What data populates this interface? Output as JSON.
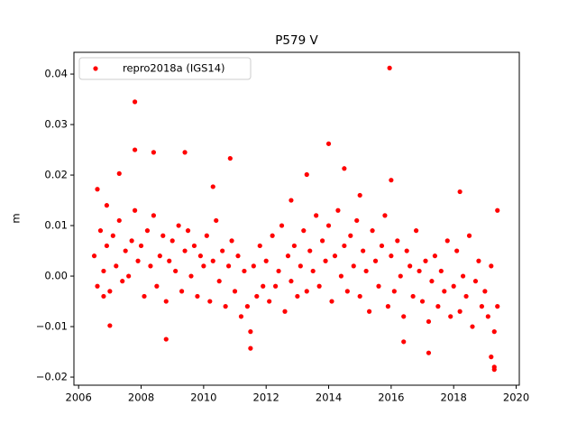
{
  "chart_data": {
    "type": "scatter",
    "title": "P579 V",
    "y_label": "m",
    "xlim": [
      2005.85,
      2020.1
    ],
    "xticks": [
      2006,
      2008,
      2010,
      2012,
      2014,
      2016,
      2018,
      2020
    ],
    "ylim": [
      -0.0216,
      0.0443
    ],
    "yticks": [
      {
        "value": -0.02,
        "label": "−0.02"
      },
      {
        "value": -0.01,
        "label": "−0.01"
      },
      {
        "value": 0,
        "label": "0.00"
      },
      0.01,
      0.02,
      0.03,
      0.04
    ],
    "legend": "upper left",
    "grid": false,
    "series": [
      {
        "name": "repro2018a (IGS14)",
        "color": "#ff0000",
        "x": [
          2006.5,
          2006.6,
          2006.7,
          2006.8,
          2006.9,
          2007.0,
          2007.1,
          2007.2,
          2007.3,
          2007.4,
          2007.5,
          2007.6,
          2007.7,
          2007.8,
          2007.9,
          2008.0,
          2008.1,
          2008.2,
          2008.3,
          2008.4,
          2008.5,
          2008.6,
          2008.7,
          2008.8,
          2008.9,
          2009.0,
          2009.1,
          2009.2,
          2009.3,
          2009.4,
          2009.5,
          2009.6,
          2009.7,
          2009.8,
          2009.9,
          2010.0,
          2010.1,
          2010.2,
          2010.3,
          2010.4,
          2010.5,
          2010.6,
          2010.7,
          2010.8,
          2010.9,
          2011.0,
          2011.1,
          2011.2,
          2011.3,
          2011.4,
          2011.5,
          2011.6,
          2011.7,
          2011.8,
          2011.9,
          2012.0,
          2012.1,
          2012.2,
          2012.3,
          2012.4,
          2012.5,
          2012.6,
          2012.7,
          2012.8,
          2012.9,
          2013.0,
          2013.1,
          2013.2,
          2013.3,
          2013.4,
          2013.5,
          2013.6,
          2013.7,
          2013.8,
          2013.9,
          2014.0,
          2014.1,
          2014.2,
          2014.3,
          2014.4,
          2014.5,
          2014.6,
          2014.7,
          2014.8,
          2014.9,
          2015.0,
          2015.1,
          2015.2,
          2015.3,
          2015.4,
          2015.5,
          2015.6,
          2015.7,
          2015.8,
          2015.9,
          2016.0,
          2016.1,
          2016.2,
          2016.3,
          2016.4,
          2016.5,
          2016.6,
          2016.7,
          2016.8,
          2016.9,
          2017.0,
          2017.1,
          2017.2,
          2017.3,
          2017.4,
          2017.5,
          2017.6,
          2017.7,
          2017.8,
          2017.9,
          2018.0,
          2018.1,
          2018.2,
          2018.3,
          2018.4,
          2018.5,
          2018.6,
          2018.7,
          2018.8,
          2018.9,
          2019.0,
          2019.1,
          2019.2,
          2019.3,
          2019.4,
          2007.8,
          2007.8,
          2008.4,
          2009.4,
          2015.95,
          2014.0,
          2014.5,
          2010.85,
          2007.3,
          2013.3,
          2008.8,
          2019.3,
          2019.3,
          2016.0,
          2010.3,
          2006.6,
          2018.2,
          2007.0,
          2011.5,
          2017.2,
          2019.2,
          2016.4,
          2012.8,
          2015.0,
          2019.4,
          2006.8,
          2006.9
        ],
        "values": [
          0.004,
          -0.002,
          0.009,
          0.001,
          0.006,
          -0.003,
          0.008,
          0.002,
          0.011,
          -0.001,
          0.005,
          0.0,
          0.007,
          0.013,
          0.003,
          0.006,
          -0.004,
          0.009,
          0.002,
          0.012,
          -0.002,
          0.004,
          0.008,
          -0.005,
          0.003,
          0.007,
          0.001,
          0.01,
          -0.003,
          0.005,
          0.009,
          0.0,
          0.006,
          -0.004,
          0.004,
          0.002,
          0.008,
          -0.005,
          0.003,
          0.011,
          -0.001,
          0.005,
          -0.006,
          0.002,
          0.007,
          -0.003,
          0.004,
          -0.008,
          0.001,
          -0.006,
          -0.011,
          0.002,
          -0.004,
          0.006,
          -0.002,
          0.003,
          -0.005,
          0.008,
          -0.002,
          0.001,
          0.01,
          -0.007,
          0.004,
          -0.001,
          0.006,
          -0.004,
          0.002,
          0.009,
          -0.003,
          0.005,
          0.001,
          0.012,
          -0.002,
          0.007,
          0.003,
          0.01,
          -0.005,
          0.004,
          0.013,
          0.0,
          0.006,
          -0.003,
          0.008,
          0.002,
          0.011,
          -0.004,
          0.005,
          0.001,
          -0.007,
          0.009,
          0.003,
          -0.002,
          0.006,
          0.012,
          -0.006,
          0.004,
          -0.003,
          0.007,
          0.0,
          -0.008,
          0.005,
          0.002,
          -0.004,
          0.009,
          0.001,
          -0.005,
          0.003,
          -0.009,
          -0.001,
          0.004,
          -0.006,
          0.001,
          -0.003,
          0.007,
          -0.008,
          -0.002,
          0.005,
          -0.007,
          0.0,
          -0.004,
          0.008,
          -0.01,
          -0.001,
          0.003,
          -0.006,
          -0.003,
          -0.008,
          0.002,
          -0.011,
          -0.006,
          0.0345,
          0.025,
          0.0245,
          0.0245,
          0.0412,
          0.0262,
          0.0213,
          0.0233,
          0.0203,
          0.0201,
          -0.0125,
          -0.018,
          -0.0185,
          0.019,
          0.0177,
          0.0172,
          0.0167,
          -0.0098,
          -0.0143,
          -0.0152,
          -0.016,
          -0.013,
          0.015,
          0.016,
          0.013,
          -0.004,
          0.014
        ]
      }
    ]
  }
}
